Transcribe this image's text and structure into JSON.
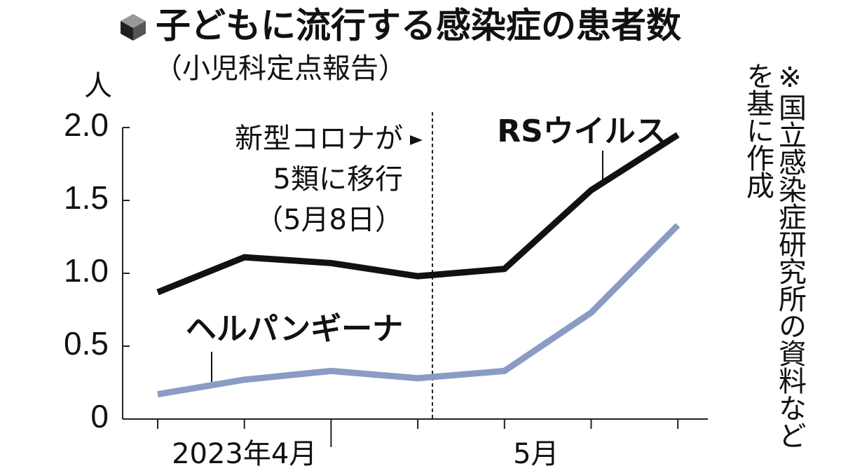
{
  "chart_data": {
    "type": "line",
    "title": "子どもに流行する感染症の患者数",
    "subtitle": "（小児科定点報告）",
    "y_unit": "人",
    "annotation": [
      "新型コロナが",
      "5類に移行",
      "（5月8日）"
    ],
    "source": "※国立感染症研究所の資料などを基に作成",
    "categories": [
      null,
      "2023年4月",
      null,
      null,
      "5月",
      null,
      null
    ],
    "series": [
      {
        "name": "RSウイルス",
        "color": "#111111",
        "values": [
          0.87,
          1.11,
          1.07,
          0.98,
          1.03,
          1.57,
          1.95
        ]
      },
      {
        "name": "ヘルパンギーナ",
        "color": "#8a9cc4",
        "values": [
          0.17,
          0.27,
          0.33,
          0.28,
          0.33,
          0.73,
          1.33
        ]
      }
    ],
    "ylim": [
      0,
      2.0
    ],
    "yticks": [
      0,
      {
        "value": 0.5,
        "label": "0.5"
      },
      {
        "value": 1,
        "label": "1.0"
      },
      {
        "value": 1.5,
        "label": "1.5"
      },
      {
        "value": 2,
        "label": "2.0"
      }
    ]
  }
}
